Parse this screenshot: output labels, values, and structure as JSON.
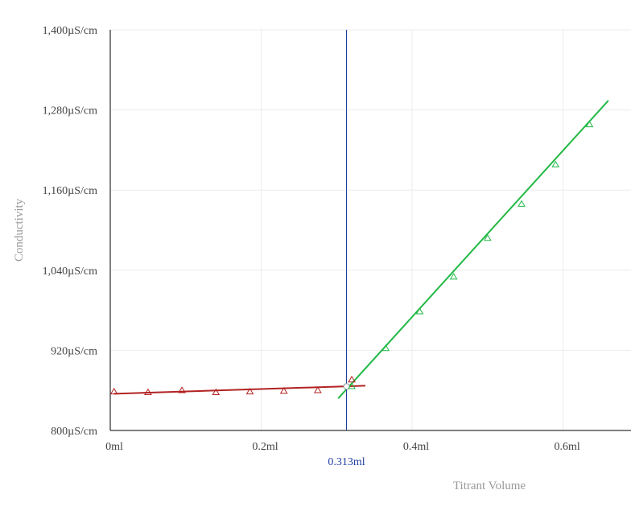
{
  "chart_data": {
    "type": "scatter",
    "title": "",
    "xlabel": "Titrant Volume",
    "ylabel": "Conductivity",
    "xlim": [
      0,
      0.69
    ],
    "ylim": [
      800,
      1400
    ],
    "x_ticks": [
      {
        "value": 0,
        "label": "0ml"
      },
      {
        "value": 0.2,
        "label": "0.2ml"
      },
      {
        "value": 0.4,
        "label": "0.4ml"
      },
      {
        "value": 0.6,
        "label": "0.6ml"
      }
    ],
    "y_ticks": [
      {
        "value": 800,
        "label": "800µS/cm"
      },
      {
        "value": 920,
        "label": "920µS/cm"
      },
      {
        "value": 1040,
        "label": "1,040µS/cm"
      },
      {
        "value": 1160,
        "label": "1,160µS/cm"
      },
      {
        "value": 1280,
        "label": "1,280µS/cm"
      },
      {
        "value": 1400,
        "label": "1,400µS/cm"
      }
    ],
    "grid": true,
    "series": [
      {
        "color": "#b22222",
        "marker": "triangle",
        "points": [
          {
            "x": 0.005,
            "y": 858
          },
          {
            "x": 0.05,
            "y": 857
          },
          {
            "x": 0.095,
            "y": 860
          },
          {
            "x": 0.14,
            "y": 857
          },
          {
            "x": 0.185,
            "y": 858
          },
          {
            "x": 0.23,
            "y": 859
          },
          {
            "x": 0.275,
            "y": 860
          },
          {
            "x": 0.32,
            "y": 876
          }
        ],
        "fit_line": {
          "x": [
            0.005,
            0.338
          ],
          "y": [
            855,
            867
          ]
        }
      },
      {
        "color": "#22b845",
        "marker": "triangle",
        "points": [
          {
            "x": 0.32,
            "y": 866
          },
          {
            "x": 0.365,
            "y": 923
          },
          {
            "x": 0.41,
            "y": 978
          },
          {
            "x": 0.455,
            "y": 1030
          },
          {
            "x": 0.5,
            "y": 1088
          },
          {
            "x": 0.545,
            "y": 1139
          },
          {
            "x": 0.59,
            "y": 1198
          },
          {
            "x": 0.635,
            "y": 1258
          }
        ],
        "fit_line": {
          "x": [
            0.302,
            0.66
          ],
          "y": [
            848,
            1294
          ]
        }
      }
    ],
    "equivalence_point": {
      "x": 0.313,
      "label": "0.313ml",
      "marker_y": 866,
      "color": "#1f3fa0"
    }
  }
}
